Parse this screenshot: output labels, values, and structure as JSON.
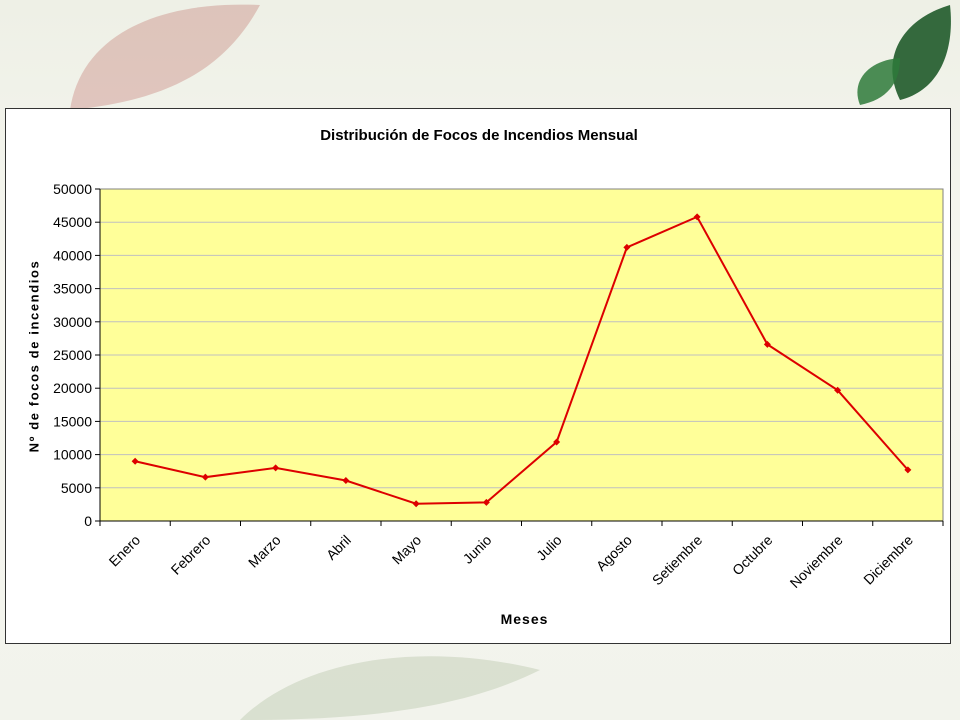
{
  "colors": {
    "plot_area": "#FFFF99",
    "series_line": "#DD0000",
    "gridline": "#C0C0C0",
    "leaf_dark": "#1F5A2A",
    "leaf_red": "#B4524A"
  },
  "background": {
    "decor_icon": "leaf-icon"
  },
  "chart_data": {
    "type": "line",
    "title": "Distribución de Focos de Incendios Mensual",
    "xlabel": "Meses",
    "ylabel": "Nº de focos de incendios",
    "categories": [
      "Enero",
      "Febrero",
      "Marzo",
      "Abril",
      "Mayo",
      "Junio",
      "Julio",
      "Agosto",
      "Setiembre",
      "Octubre",
      "Noviembre",
      "Diciembre"
    ],
    "series": [
      {
        "values": [
          9000,
          6600,
          8000,
          6100,
          2600,
          2800,
          11900,
          41200,
          45800,
          26600,
          19700,
          7700
        ]
      }
    ],
    "ylim": [
      0,
      50000
    ],
    "yticks": [
      0,
      5000,
      10000,
      15000,
      20000,
      25000,
      30000,
      35000,
      40000,
      45000,
      50000
    ],
    "grid": true,
    "legend": "none"
  }
}
